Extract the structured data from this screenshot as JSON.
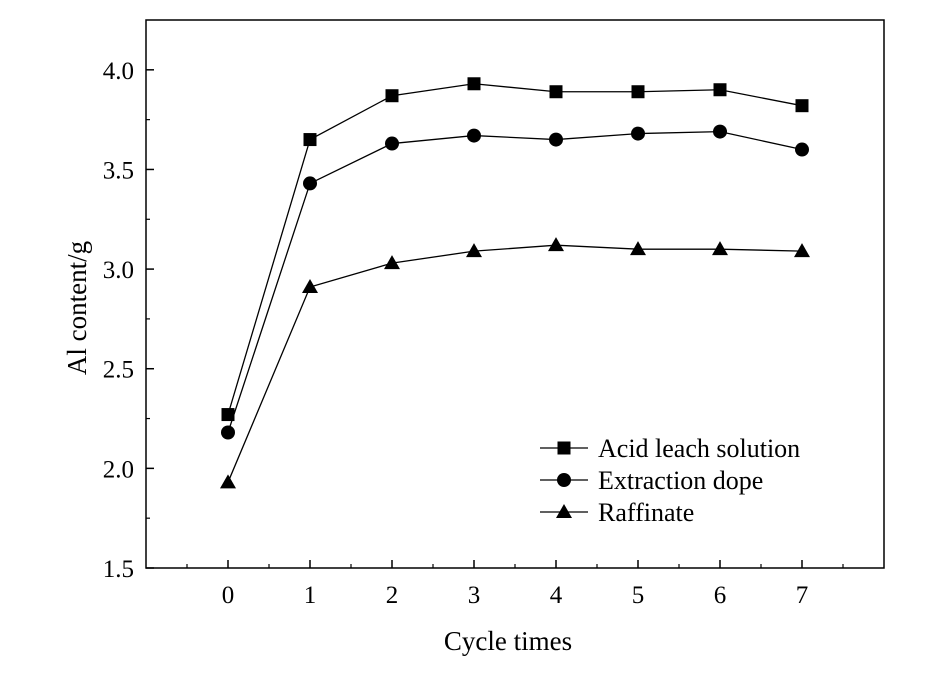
{
  "chart_data": {
    "type": "line",
    "xlabel": "Cycle times",
    "ylabel": "Al content/g",
    "xlim": [
      -1,
      8
    ],
    "ylim": [
      1.5,
      4.25
    ],
    "x_ticks": [
      "0",
      "1",
      "2",
      "3",
      "4",
      "5",
      "6",
      "7"
    ],
    "y_ticks": [
      "1.5",
      "2.0",
      "2.5",
      "3.0",
      "3.5",
      "4.0"
    ],
    "x": [
      0,
      1,
      2,
      3,
      4,
      5,
      6,
      7
    ],
    "series": [
      {
        "name": "Acid leach solution",
        "marker": "square",
        "values": [
          2.27,
          3.65,
          3.87,
          3.93,
          3.89,
          3.89,
          3.9,
          3.82
        ]
      },
      {
        "name": "Extraction dope",
        "marker": "circle",
        "values": [
          2.18,
          3.43,
          3.63,
          3.67,
          3.65,
          3.68,
          3.69,
          3.6
        ]
      },
      {
        "name": "Raffinate",
        "marker": "triangle",
        "values": [
          1.93,
          2.91,
          3.03,
          3.09,
          3.12,
          3.1,
          3.1,
          3.09
        ]
      }
    ],
    "grid": false,
    "legend_position": "bottom-right",
    "colors": {
      "line": "#000000",
      "marker": "#000000"
    }
  }
}
